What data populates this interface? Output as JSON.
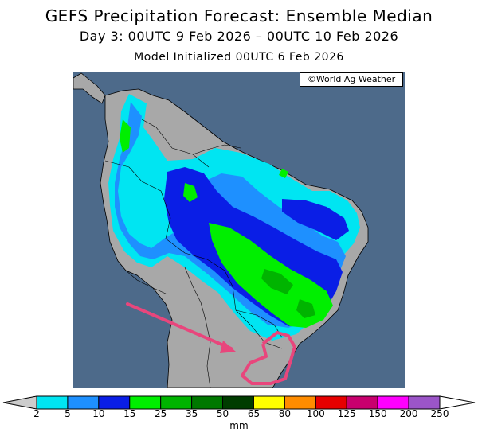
{
  "title": "GEFS Precipitation Forecast: Ensemble Median",
  "valid_period": "Day 3: 00UTC 9 Feb 2026 – 00UTC 10 Feb 2026",
  "init_time": "Model Initialized 00UTC 6 Feb 2026",
  "credit": "©World Ag Weather",
  "legend": {
    "unit": "mm",
    "ticks": [
      "2",
      "5",
      "10",
      "15",
      "25",
      "35",
      "50",
      "65",
      "80",
      "100",
      "125",
      "150",
      "200",
      "250"
    ],
    "bins": [
      {
        "from": "2",
        "to": "5",
        "color": "#00e5f2"
      },
      {
        "from": "5",
        "to": "10",
        "color": "#1e90ff"
      },
      {
        "from": "10",
        "to": "15",
        "color": "#0a1ee6"
      },
      {
        "from": "15",
        "to": "25",
        "color": "#00ef00"
      },
      {
        "from": "25",
        "to": "35",
        "color": "#00b400"
      },
      {
        "from": "35",
        "to": "50",
        "color": "#007800"
      },
      {
        "from": "50",
        "to": "65",
        "color": "#003c00"
      },
      {
        "from": "65",
        "to": "80",
        "color": "#ffff00"
      },
      {
        "from": "80",
        "to": "100",
        "color": "#ff8c00"
      },
      {
        "from": "100",
        "to": "125",
        "color": "#e60000"
      },
      {
        "from": "125",
        "to": "150",
        "color": "#c8006e"
      },
      {
        "from": "150",
        "to": "200",
        "color": "#ff00ff"
      },
      {
        "from": "200",
        "to": "250",
        "color": "#9b55c8"
      }
    ]
  },
  "colors": {
    "ocean": "#4d6a8a",
    "land": "#a8a8a8",
    "annotation": "#e8467c"
  }
}
